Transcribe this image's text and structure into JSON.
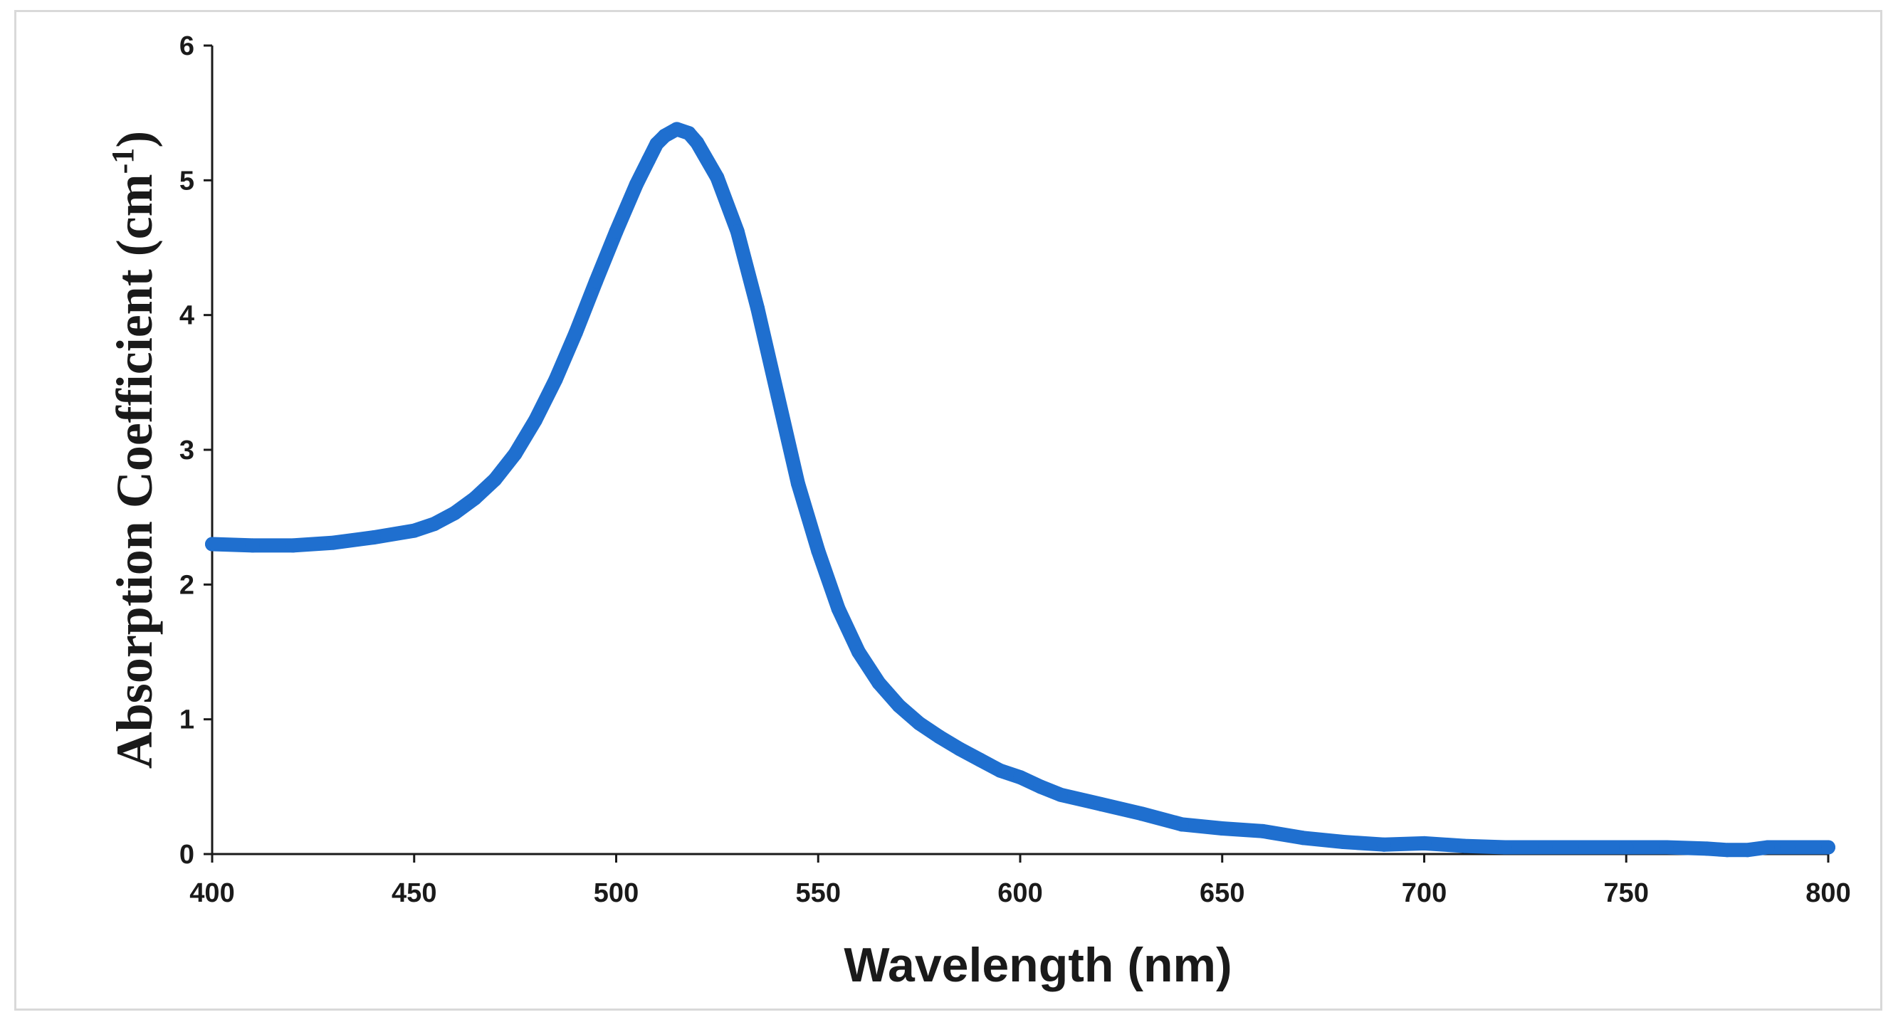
{
  "chart_data": {
    "type": "line",
    "title": "",
    "xlabel": "Wavelength (nm)",
    "ylabel": "Absorption Coefficient (cm",
    "ylabel_sup": "-1",
    "ylabel_suffix": ")",
    "xlim": [
      400,
      800
    ],
    "ylim": [
      0,
      6
    ],
    "xticks": [
      "400",
      "450",
      "500",
      "550",
      "600",
      "650",
      "700",
      "750",
      "800"
    ],
    "yticks": [
      "0",
      "1",
      "2",
      "3",
      "4",
      "5",
      "6"
    ],
    "grid": false,
    "legend": "none",
    "series": [
      {
        "name": "Absorption coefficient",
        "color": "#1f6fcf",
        "points": [
          [
            400,
            2.3
          ],
          [
            410,
            2.29
          ],
          [
            420,
            2.29
          ],
          [
            430,
            2.31
          ],
          [
            440,
            2.35
          ],
          [
            450,
            2.4
          ],
          [
            455,
            2.45
          ],
          [
            460,
            2.53
          ],
          [
            465,
            2.64
          ],
          [
            470,
            2.78
          ],
          [
            475,
            2.97
          ],
          [
            480,
            3.22
          ],
          [
            485,
            3.52
          ],
          [
            490,
            3.87
          ],
          [
            495,
            4.25
          ],
          [
            500,
            4.62
          ],
          [
            505,
            4.97
          ],
          [
            508,
            5.15
          ],
          [
            510,
            5.27
          ],
          [
            512,
            5.33
          ],
          [
            515,
            5.38
          ],
          [
            518,
            5.35
          ],
          [
            520,
            5.28
          ],
          [
            525,
            5.02
          ],
          [
            530,
            4.62
          ],
          [
            535,
            4.05
          ],
          [
            540,
            3.4
          ],
          [
            545,
            2.75
          ],
          [
            550,
            2.25
          ],
          [
            555,
            1.82
          ],
          [
            560,
            1.5
          ],
          [
            565,
            1.27
          ],
          [
            570,
            1.1
          ],
          [
            575,
            0.97
          ],
          [
            580,
            0.87
          ],
          [
            585,
            0.78
          ],
          [
            590,
            0.7
          ],
          [
            595,
            0.62
          ],
          [
            600,
            0.57
          ],
          [
            605,
            0.5
          ],
          [
            610,
            0.44
          ],
          [
            620,
            0.37
          ],
          [
            630,
            0.3
          ],
          [
            640,
            0.22
          ],
          [
            650,
            0.19
          ],
          [
            660,
            0.17
          ],
          [
            670,
            0.12
          ],
          [
            680,
            0.09
          ],
          [
            690,
            0.07
          ],
          [
            700,
            0.08
          ],
          [
            710,
            0.06
          ],
          [
            720,
            0.05
          ],
          [
            730,
            0.05
          ],
          [
            740,
            0.05
          ],
          [
            750,
            0.05
          ],
          [
            760,
            0.05
          ],
          [
            770,
            0.04
          ],
          [
            775,
            0.03
          ],
          [
            780,
            0.03
          ],
          [
            785,
            0.05
          ],
          [
            790,
            0.05
          ],
          [
            800,
            0.05
          ]
        ]
      }
    ]
  }
}
